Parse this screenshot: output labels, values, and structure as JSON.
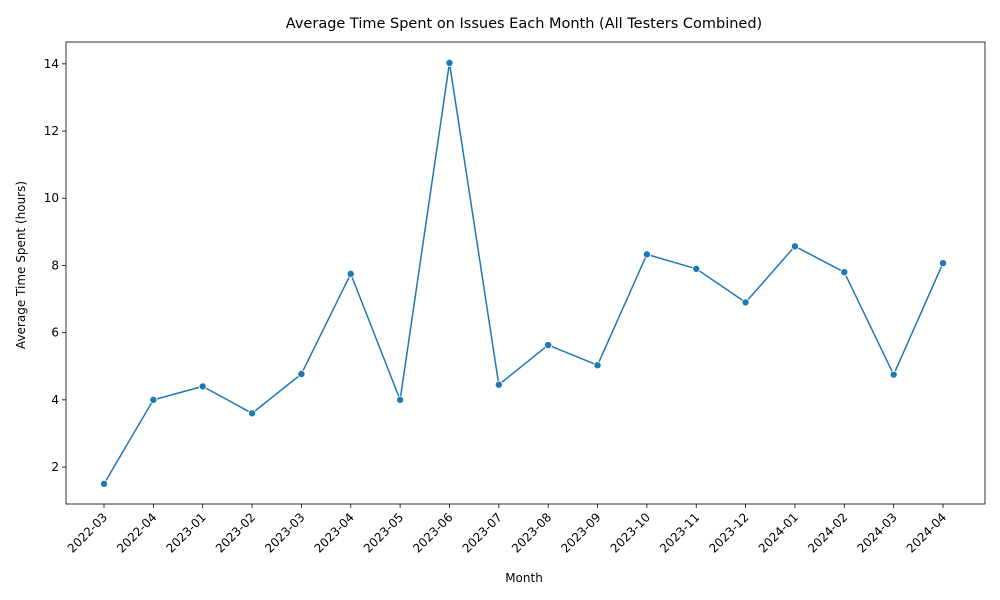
{
  "chart_data": {
    "type": "line",
    "title": "Average Time Spent on Issues Each Month (All Testers Combined)",
    "xlabel": "Month",
    "ylabel": "Average Time Spent (hours)",
    "categories": [
      "2022-03",
      "2022-04",
      "2023-01",
      "2023-02",
      "2023-03",
      "2023-04",
      "2023-05",
      "2023-06",
      "2023-07",
      "2023-08",
      "2023-09",
      "2023-10",
      "2023-11",
      "2023-12",
      "2024-01",
      "2024-02",
      "2024-03",
      "2024-04"
    ],
    "series": [
      {
        "values": [
          1.5,
          4.0,
          4.4,
          3.6,
          4.77,
          7.75,
          4.0,
          14.03,
          4.45,
          5.63,
          5.03,
          8.33,
          7.9,
          6.9,
          8.57,
          7.8,
          4.75,
          8.07
        ],
        "color": "#1f77b4",
        "marker": "circle"
      }
    ],
    "yticks": [
      2,
      4,
      6,
      8,
      10,
      12,
      14
    ],
    "ylim": [
      0.9,
      14.65
    ],
    "grid": false,
    "xtick_rotation": 45
  }
}
